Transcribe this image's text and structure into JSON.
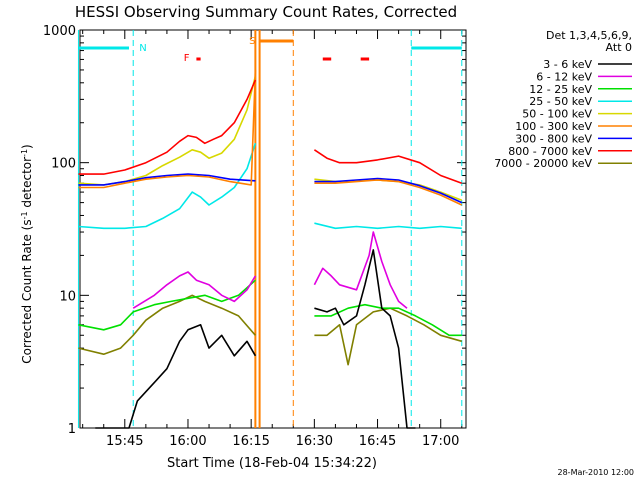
{
  "chart_data": {
    "type": "line",
    "title": "HESSI Observing Summary Count Rates, Corrected",
    "xlabel": "Start Time (18-Feb-04 15:34:22)",
    "ylabel_main": "Corrected Count Rate (s",
    "ylabel_sup1": "-1",
    "ylabel_mid": " detector",
    "ylabel_sup2": "-1",
    "ylabel_end": ")",
    "yscale": "log",
    "ylim": [
      1,
      1000
    ],
    "xlim": [
      "15:34:22",
      "17:06:00"
    ],
    "x_ticks": [
      "15:45",
      "16:00",
      "16:15",
      "16:30",
      "16:45",
      "17:00"
    ],
    "y_ticks": [
      "1",
      "10",
      "100",
      "1000"
    ],
    "date_stamp": "28-Mar-2010 12:00",
    "legend": {
      "placement": "right",
      "header1": "Det 1,3,4,5,6,9,",
      "header2": "Att 0",
      "entries": [
        {
          "label": "3 - 6 keV",
          "color": "#000000"
        },
        {
          "label": "6 - 12 keV",
          "color": "#e000e0"
        },
        {
          "label": "12 - 25 keV",
          "color": "#00e000"
        },
        {
          "label": "25 - 50 keV",
          "color": "#00e8e8"
        },
        {
          "label": "50 - 100 keV",
          "color": "#d8d800"
        },
        {
          "label": "100 - 300 keV",
          "color": "#ff8000"
        },
        {
          "label": "300 - 800 keV",
          "color": "#0000ff"
        },
        {
          "label": "800 - 7000 keV",
          "color": "#ff0000"
        },
        {
          "label": "7000 - 20000 keV",
          "color": "#808000"
        }
      ]
    },
    "flags": [
      {
        "label": "N",
        "color": "#00e8e8"
      },
      {
        "label": "F",
        "color": "#ff0000"
      },
      {
        "label": "S",
        "color": "#ff8000"
      }
    ],
    "series": [
      {
        "name": "3 - 6 keV",
        "color": "#000000",
        "segments": [
          [
            [
              "15:38",
              1.0
            ],
            [
              "15:46",
              1.0
            ],
            [
              "15:48",
              1.6
            ],
            [
              "15:52",
              2.2
            ],
            [
              "15:55",
              2.8
            ],
            [
              "15:58",
              4.5
            ],
            [
              "16:00",
              5.5
            ],
            [
              "16:03",
              6.0
            ],
            [
              "16:05",
              4.0
            ],
            [
              "16:08",
              5.0
            ],
            [
              "16:11",
              3.5
            ],
            [
              "16:14",
              4.5
            ],
            [
              "16:16",
              3.5
            ]
          ],
          [
            [
              "16:30",
              8.0
            ],
            [
              "16:33",
              7.5
            ],
            [
              "16:35",
              8.0
            ],
            [
              "16:37",
              6.0
            ],
            [
              "16:40",
              7.0
            ],
            [
              "16:42",
              12.0
            ],
            [
              "16:44",
              22.0
            ],
            [
              "16:46",
              8.0
            ],
            [
              "16:48",
              7.0
            ],
            [
              "16:50",
              4.0
            ],
            [
              "16:52",
              1.0
            ],
            [
              "16:54",
              1.0
            ]
          ]
        ]
      },
      {
        "name": "6 - 12 keV",
        "color": "#e000e0",
        "segments": [
          [
            [
              "15:47",
              8.0
            ],
            [
              "15:52",
              10.0
            ],
            [
              "15:55",
              12.0
            ],
            [
              "15:58",
              14.0
            ],
            [
              "16:00",
              15.0
            ],
            [
              "16:02",
              13.0
            ],
            [
              "16:05",
              12.0
            ],
            [
              "16:08",
              10.0
            ],
            [
              "16:11",
              9.0
            ],
            [
              "16:14",
              11.0
            ],
            [
              "16:16",
              14.0
            ]
          ],
          [
            [
              "16:30",
              12.0
            ],
            [
              "16:32",
              16.0
            ],
            [
              "16:34",
              14.0
            ],
            [
              "16:36",
              12.0
            ],
            [
              "16:40",
              11.0
            ],
            [
              "16:43",
              20.0
            ],
            [
              "16:44",
              30.0
            ],
            [
              "16:46",
              18.0
            ],
            [
              "16:48",
              12.0
            ],
            [
              "16:50",
              9.0
            ],
            [
              "16:52",
              8.0
            ]
          ]
        ]
      },
      {
        "name": "12 - 25 keV",
        "color": "#00e000",
        "segments": [
          [
            [
              "15:34",
              6.0
            ],
            [
              "15:40",
              5.5
            ],
            [
              "15:44",
              6.0
            ],
            [
              "15:47",
              7.5
            ],
            [
              "15:52",
              8.5
            ],
            [
              "15:56",
              9.0
            ],
            [
              "16:00",
              9.5
            ],
            [
              "16:04",
              10.0
            ],
            [
              "16:08",
              9.0
            ],
            [
              "16:12",
              10.0
            ],
            [
              "16:16",
              13.0
            ]
          ],
          [
            [
              "16:30",
              7.0
            ],
            [
              "16:34",
              7.0
            ],
            [
              "16:38",
              8.0
            ],
            [
              "16:42",
              8.5
            ],
            [
              "16:46",
              8.0
            ],
            [
              "16:50",
              8.0
            ],
            [
              "16:54",
              7.0
            ],
            [
              "16:58",
              6.0
            ],
            [
              "17:02",
              5.0
            ],
            [
              "17:05",
              5.0
            ]
          ]
        ]
      },
      {
        "name": "25 - 50 keV",
        "color": "#00e8e8",
        "segments": [
          [
            [
              "15:34",
              33.0
            ],
            [
              "15:40",
              32.0
            ],
            [
              "15:45",
              32.0
            ],
            [
              "15:50",
              33.0
            ],
            [
              "15:54",
              38.0
            ],
            [
              "15:58",
              45.0
            ],
            [
              "16:01",
              60.0
            ],
            [
              "16:03",
              55.0
            ],
            [
              "16:05",
              48.0
            ],
            [
              "16:08",
              55.0
            ],
            [
              "16:11",
              65.0
            ],
            [
              "16:14",
              90.0
            ],
            [
              "16:16",
              140.0
            ]
          ],
          [
            [
              "16:30",
              35.0
            ],
            [
              "16:35",
              32.0
            ],
            [
              "16:40",
              33.0
            ],
            [
              "16:45",
              32.0
            ],
            [
              "16:50",
              33.0
            ],
            [
              "16:55",
              32.0
            ],
            [
              "17:00",
              33.0
            ],
            [
              "17:05",
              32.0
            ]
          ]
        ]
      },
      {
        "name": "50 - 100 keV",
        "color": "#d8d800",
        "segments": [
          [
            [
              "15:34",
              70.0
            ],
            [
              "15:40",
              68.0
            ],
            [
              "15:45",
              72.0
            ],
            [
              "15:50",
              80.0
            ],
            [
              "15:54",
              95.0
            ],
            [
              "15:58",
              110.0
            ],
            [
              "16:01",
              125.0
            ],
            [
              "16:03",
              120.0
            ],
            [
              "16:05",
              108.0
            ],
            [
              "16:08",
              118.0
            ],
            [
              "16:11",
              150.0
            ],
            [
              "16:14",
              250.0
            ],
            [
              "16:16",
              450.0
            ]
          ],
          [
            [
              "16:30",
              75.0
            ],
            [
              "16:35",
              72.0
            ],
            [
              "16:40",
              73.0
            ],
            [
              "16:45",
              74.0
            ],
            [
              "16:50",
              72.0
            ],
            [
              "16:55",
              68.0
            ],
            [
              "17:00",
              60.0
            ],
            [
              "17:05",
              52.0
            ]
          ]
        ]
      },
      {
        "name": "100 - 300 keV",
        "color": "#ff8000",
        "segments": [
          [
            [
              "15:34",
              65.0
            ],
            [
              "15:40",
              65.0
            ],
            [
              "15:45",
              70.0
            ],
            [
              "15:50",
              75.0
            ],
            [
              "15:55",
              78.0
            ],
            [
              "16:00",
              80.0
            ],
            [
              "16:05",
              78.0
            ],
            [
              "16:10",
              72.0
            ],
            [
              "16:15",
              68.0
            ],
            [
              "16:16",
              500.0
            ]
          ],
          [
            [
              "16:30",
              70.0
            ],
            [
              "16:35",
              70.0
            ],
            [
              "16:40",
              72.0
            ],
            [
              "16:45",
              74.0
            ],
            [
              "16:50",
              72.0
            ],
            [
              "16:55",
              65.0
            ],
            [
              "17:00",
              57.0
            ],
            [
              "17:05",
              48.0
            ]
          ]
        ]
      },
      {
        "name": "300 - 800 keV",
        "color": "#0000ff",
        "segments": [
          [
            [
              "15:34",
              68.0
            ],
            [
              "15:40",
              68.0
            ],
            [
              "15:45",
              72.0
            ],
            [
              "15:50",
              77.0
            ],
            [
              "15:55",
              80.0
            ],
            [
              "16:00",
              82.0
            ],
            [
              "16:05",
              80.0
            ],
            [
              "16:10",
              75.0
            ],
            [
              "16:16",
              73.0
            ]
          ],
          [
            [
              "16:30",
              72.0
            ],
            [
              "16:35",
              72.0
            ],
            [
              "16:40",
              74.0
            ],
            [
              "16:45",
              76.0
            ],
            [
              "16:50",
              74.0
            ],
            [
              "16:55",
              67.0
            ],
            [
              "17:00",
              59.0
            ],
            [
              "17:05",
              50.0
            ]
          ]
        ]
      },
      {
        "name": "800 - 7000 keV",
        "color": "#ff0000",
        "segments": [
          [
            [
              "15:34",
              82.0
            ],
            [
              "15:40",
              82.0
            ],
            [
              "15:45",
              88.0
            ],
            [
              "15:50",
              100.0
            ],
            [
              "15:55",
              120.0
            ],
            [
              "15:58",
              145.0
            ],
            [
              "16:00",
              160.0
            ],
            [
              "16:02",
              155.0
            ],
            [
              "16:04",
              140.0
            ],
            [
              "16:06",
              150.0
            ],
            [
              "16:08",
              160.0
            ],
            [
              "16:11",
              200.0
            ],
            [
              "16:14",
              300.0
            ],
            [
              "16:16",
              420.0
            ]
          ],
          [
            [
              "16:30",
              125.0
            ],
            [
              "16:33",
              108.0
            ],
            [
              "16:36",
              100.0
            ],
            [
              "16:40",
              100.0
            ],
            [
              "16:45",
              105.0
            ],
            [
              "16:50",
              112.0
            ],
            [
              "16:55",
              100.0
            ],
            [
              "17:00",
              80.0
            ],
            [
              "17:05",
              70.0
            ]
          ]
        ]
      },
      {
        "name": "7000 - 20000 keV",
        "color": "#808000",
        "segments": [
          [
            [
              "15:34",
              4.0
            ],
            [
              "15:40",
              3.6
            ],
            [
              "15:44",
              4.0
            ],
            [
              "15:47",
              5.0
            ],
            [
              "15:50",
              6.5
            ],
            [
              "15:54",
              8.0
            ],
            [
              "15:58",
              9.0
            ],
            [
              "16:01",
              10.0
            ],
            [
              "16:04",
              9.0
            ],
            [
              "16:08",
              8.0
            ],
            [
              "16:12",
              7.0
            ],
            [
              "16:16",
              5.0
            ]
          ],
          [
            [
              "16:30",
              5.0
            ],
            [
              "16:33",
              5.0
            ],
            [
              "16:36",
              6.0
            ],
            [
              "16:38",
              3.0
            ],
            [
              "16:40",
              6.0
            ],
            [
              "16:44",
              7.5
            ],
            [
              "16:48",
              8.0
            ],
            [
              "16:52",
              7.0
            ],
            [
              "16:56",
              6.0
            ],
            [
              "17:00",
              5.0
            ],
            [
              "17:05",
              4.5
            ]
          ]
        ]
      }
    ],
    "markers": {
      "cyan_dashed": [
        "15:47",
        "16:53",
        "17:05"
      ],
      "cyan_solid": [
        "15:34"
      ],
      "orange_solid": [
        "16:16",
        "16:17"
      ],
      "orange_dashed": [
        "16:25"
      ],
      "cyan_bar_segments": [
        [
          "15:34",
          "15:46"
        ],
        [
          "16:53",
          "17:05"
        ]
      ],
      "orange_bar_segments": [
        [
          "16:17",
          "16:25"
        ]
      ],
      "red_bar_segments": [
        [
          "16:02",
          "16:03"
        ],
        [
          "16:32",
          "16:34"
        ],
        [
          "16:41",
          "16:43"
        ]
      ]
    }
  }
}
